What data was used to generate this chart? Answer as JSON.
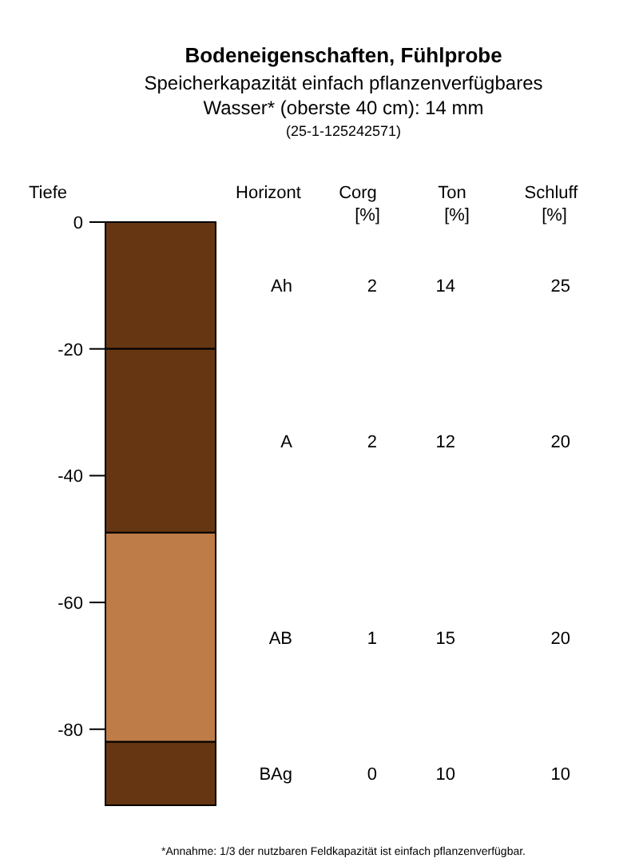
{
  "chart_data": {
    "type": "bar",
    "stacked": true,
    "title": "Bodeneigenschaften, Fühlprobe",
    "subtitle": "Speicherkapazität einfach pflanzenverfügbares\nWasser* (oberste 40 cm): 14 mm\n(25-1-125242571)",
    "ylabel": "Tiefe",
    "categories": [
      null
    ],
    "series": [
      {
        "name": "Ah",
        "color": "#663613",
        "values": [
          -20
        ]
      },
      {
        "name": "A",
        "color": "#663613",
        "values": [
          -29
        ]
      },
      {
        "name": "AB",
        "color": "#be7c48",
        "values": [
          -33
        ]
      },
      {
        "name": "BAg",
        "color": "#663613",
        "values": [
          -10
        ]
      }
    ],
    "ylim": [
      -92,
      0
    ],
    "yticks": [
      0,
      -20,
      -40,
      -60,
      -80
    ],
    "annotations": [
      "Horizont",
      "Corg\n[%]",
      "Ton\n[%]",
      "Schluff\n[%]",
      "2",
      "14",
      "25",
      "2",
      "12",
      "20",
      "1",
      "15",
      "20",
      "0",
      "10",
      "10",
      "*Annahme: 1/3 der nutzbaren Feldkapazität ist einfach pflanzenverfügbar."
    ]
  }
}
